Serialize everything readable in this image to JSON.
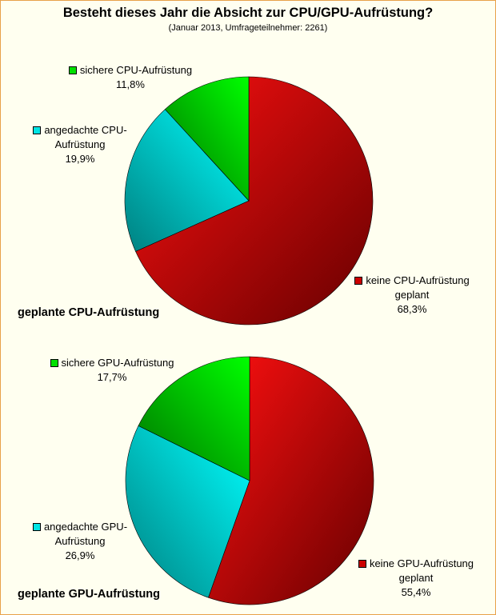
{
  "title": "Besteht dieses Jahr die Absicht zur CPU/GPU-Aufrüstung?",
  "subtitle": "(Januar 2013, Umfrageteilnehmer: 2261)",
  "chart_data": [
    {
      "type": "pie",
      "title": "geplante CPU-Aufrüstung",
      "slices": [
        {
          "name": "keine CPU-Aufrüstung geplant",
          "value": 68.3,
          "label_lines": [
            "keine CPU-Aufrüstung",
            "geplant",
            "68,3%"
          ],
          "color": "#cc0000"
        },
        {
          "name": "angedachte CPU-Aufrüstung",
          "value": 19.9,
          "label_lines": [
            "angedachte CPU-",
            "Aufrüstung",
            "19,9%"
          ],
          "color": "#00e5e5"
        },
        {
          "name": "sichere CPU-Aufrüstung",
          "value": 11.8,
          "label_lines": [
            "sichere CPU-Aufrüstung",
            "11,8%"
          ],
          "color": "#00e000"
        }
      ]
    },
    {
      "type": "pie",
      "title": "geplante GPU-Aufrüstung",
      "slices": [
        {
          "name": "keine GPU-Aufrüstung geplant",
          "value": 55.4,
          "label_lines": [
            "keine GPU-Aufrüstung",
            "geplant",
            "55,4%"
          ],
          "color": "#cc0000"
        },
        {
          "name": "angedachte GPU-Aufrüstung",
          "value": 26.9,
          "label_lines": [
            "angedachte GPU-",
            "Aufrüstung",
            "26,9%"
          ],
          "color": "#00e5e5"
        },
        {
          "name": "sichere GPU-Aufrüstung",
          "value": 17.7,
          "label_lines": [
            "sichere GPU-Aufrüstung",
            "17,7%"
          ],
          "color": "#00e000"
        }
      ]
    }
  ]
}
